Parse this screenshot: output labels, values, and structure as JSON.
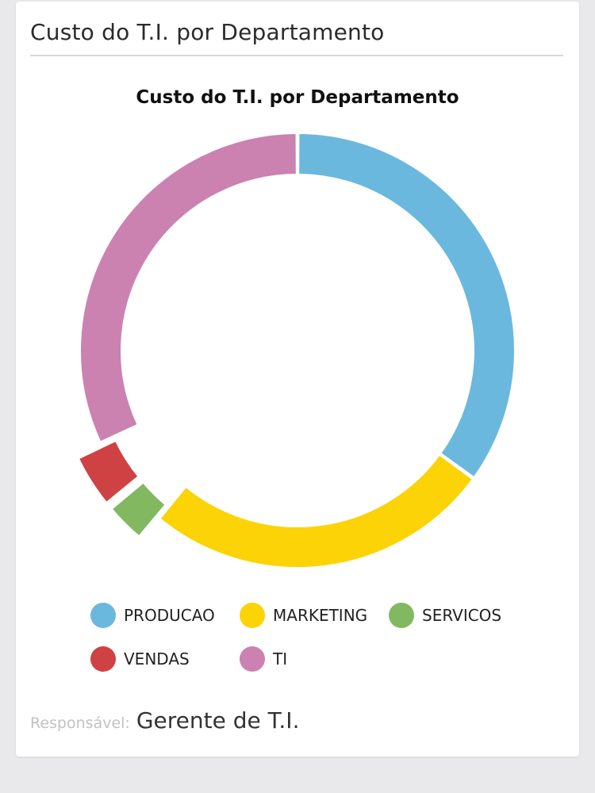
{
  "card": {
    "title": "Custo do T.I. por Departamento"
  },
  "chart_data": {
    "type": "pie",
    "title": "Custo do T.I. por Departamento",
    "variant": "donut",
    "legend_position": "bottom",
    "categories": [
      "PRODUCAO",
      "MARKETING",
      "SERVICOS",
      "VENDAS",
      "TI"
    ],
    "values": [
      35,
      26,
      3,
      4,
      32
    ],
    "colors": [
      "#6bb8de",
      "#fcd307",
      "#82b860",
      "#cf4244",
      "#cb82b0"
    ],
    "exploded": [
      "SERVICOS",
      "VENDAS"
    ]
  },
  "footer": {
    "label": "Responsável:",
    "value": "Gerente de T.I."
  }
}
